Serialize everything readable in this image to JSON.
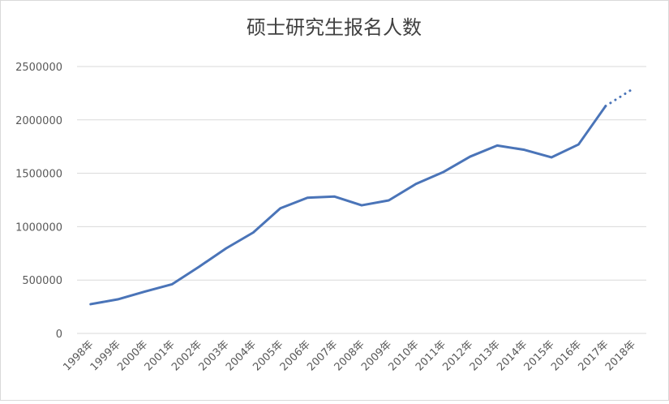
{
  "chart_data": {
    "type": "line",
    "title": "硕士研究生报名人数",
    "categories": [
      "1998年",
      "1999年",
      "2000年",
      "2001年",
      "2002年",
      "2003年",
      "2004年",
      "2005年",
      "2006年",
      "2007年",
      "2008年",
      "2009年",
      "2010年",
      "2011年",
      "2012年",
      "2013年",
      "2014年",
      "2015年",
      "2016年",
      "2017年",
      "2018年"
    ],
    "series": [
      {
        "color": "#4a74b8",
        "style": "solid",
        "values": [
          274000,
          319000,
          392000,
          460000,
          624000,
          797000,
          945000,
          1172000,
          1271000,
          1282000,
          1200000,
          1246000,
          1400000,
          1510000,
          1656000,
          1760000,
          1720000,
          1649000,
          1770000,
          2130000,
          null
        ]
      },
      {
        "color": "#4a74b8",
        "style": "dotted",
        "values": [
          null,
          null,
          null,
          null,
          null,
          null,
          null,
          null,
          null,
          null,
          null,
          null,
          null,
          null,
          null,
          null,
          null,
          null,
          null,
          2130000,
          2290000
        ]
      }
    ],
    "ylim": [
      0,
      2500000
    ],
    "yticks": [
      0,
      500000,
      1000000,
      1500000,
      2000000,
      2500000
    ],
    "grid": true
  }
}
